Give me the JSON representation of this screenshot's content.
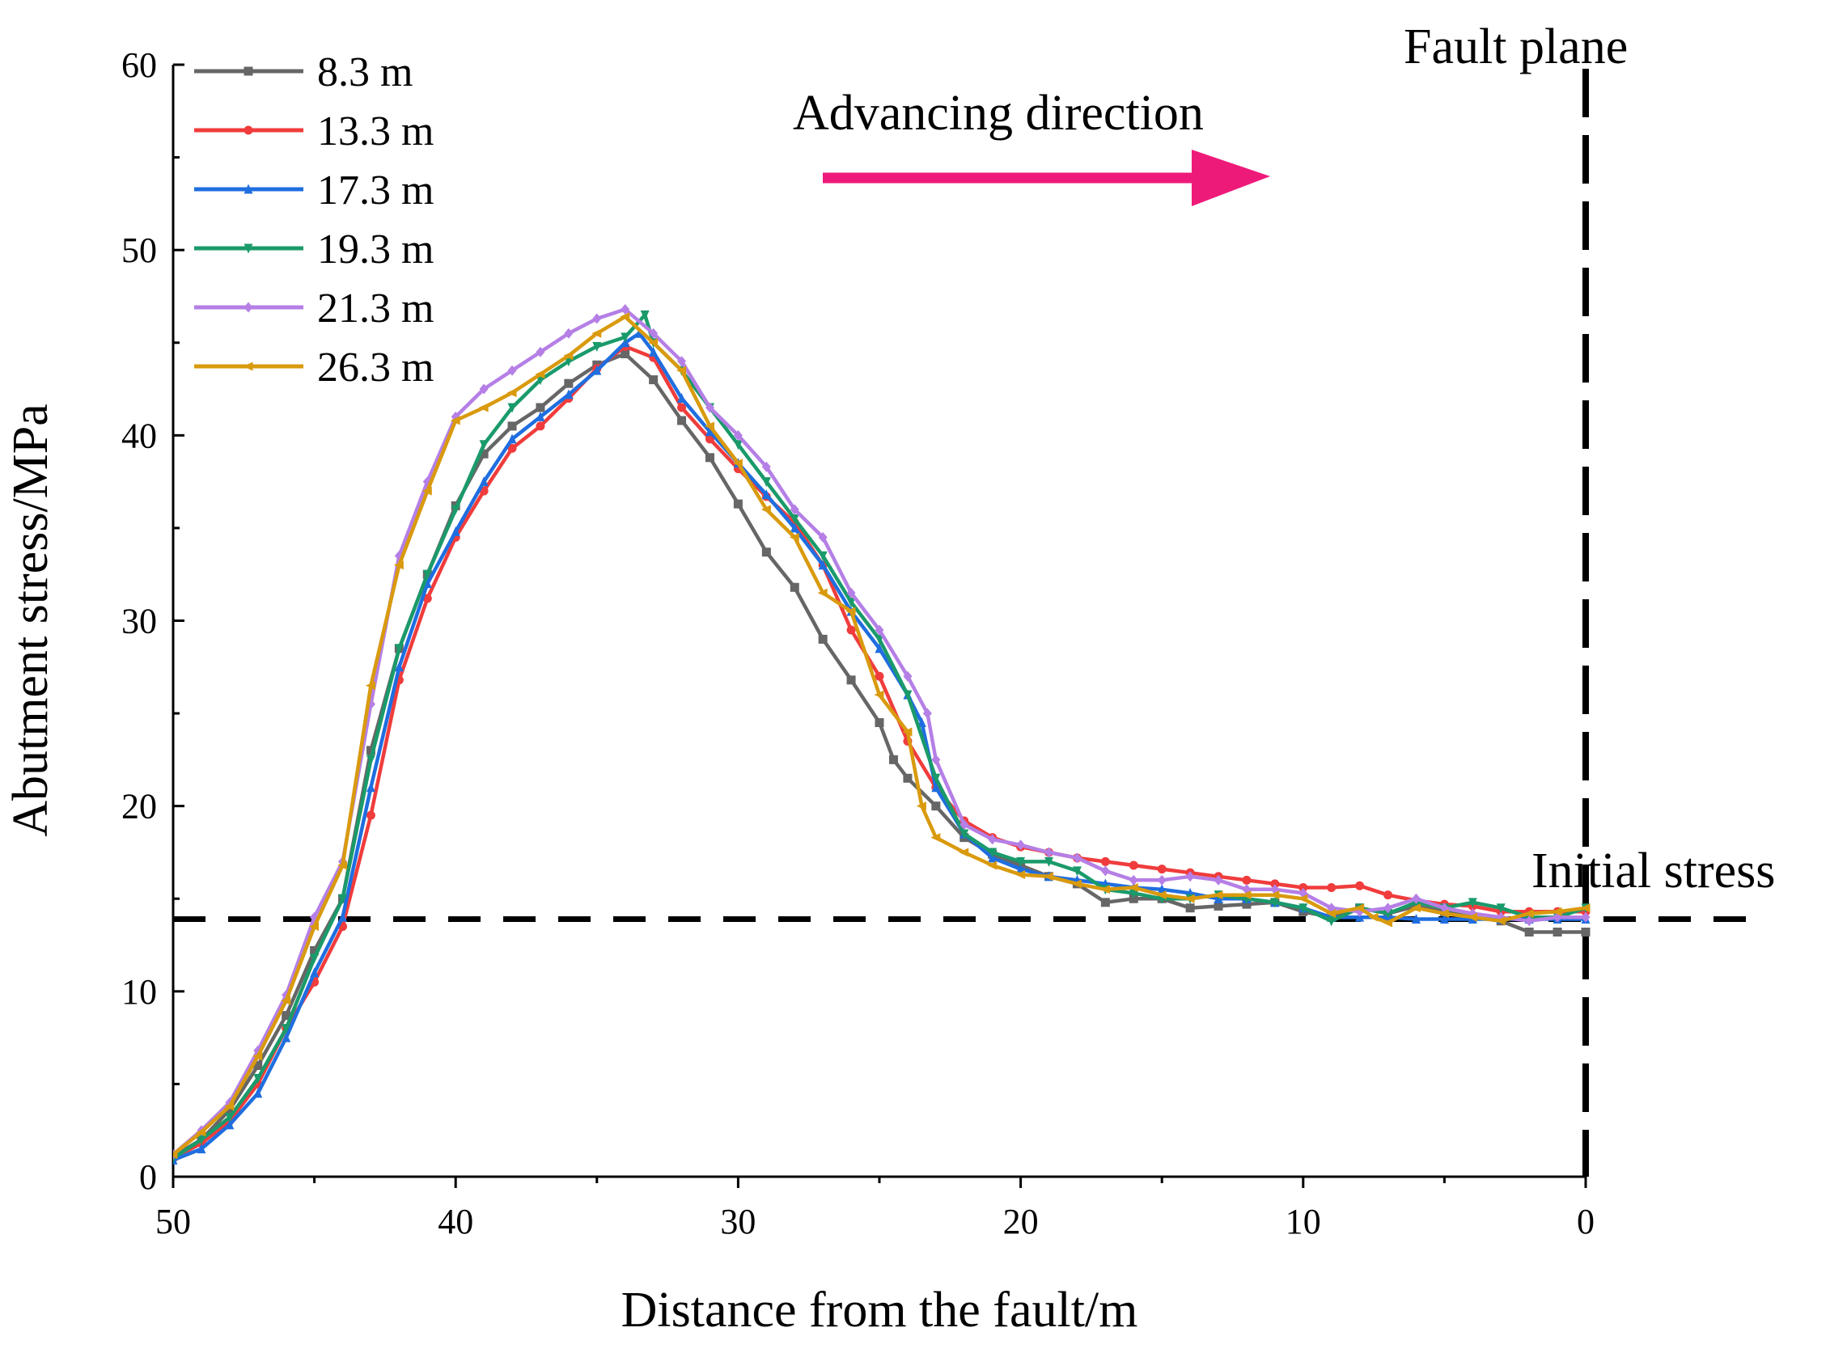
{
  "chart_data": {
    "type": "line",
    "title": "",
    "xlabel": "Distance from the fault/m",
    "ylabel": "Abutment stress/MPa",
    "xlim": [
      50,
      0
    ],
    "ylim": [
      0,
      60
    ],
    "xticks": [
      "50",
      "40",
      "30",
      "20",
      "10",
      "0"
    ],
    "yticks": [
      "0",
      "10",
      "20",
      "30",
      "40",
      "50",
      "60"
    ],
    "grid": false,
    "legend_position": "top-left",
    "annotations": {
      "fault_plane": "Fault plane",
      "initial_stress": "Initial stress",
      "advancing_direction": "Advancing direction"
    },
    "reference_lines": {
      "initial_stress_value": 13.9,
      "fault_plane_x": 0
    },
    "arrow_color": "#ee1a7a",
    "series": [
      {
        "name": "8.3 m",
        "color": "#666666",
        "marker": "square",
        "x": [
          50,
          49,
          48,
          47,
          46,
          45,
          44,
          43,
          42,
          41,
          40,
          39,
          38,
          37,
          36,
          35,
          34,
          33,
          32,
          31,
          30,
          29,
          28,
          27,
          26,
          25,
          24.5,
          24,
          23,
          22,
          21,
          20,
          19,
          18,
          17,
          16,
          15,
          14,
          13,
          12,
          11,
          10,
          9,
          8,
          7,
          6,
          5,
          4,
          3,
          2,
          1,
          0
        ],
        "y": [
          1.1,
          2.0,
          3.6,
          6.0,
          8.7,
          12.2,
          15.0,
          23.0,
          28.5,
          32.5,
          36.2,
          39.0,
          40.5,
          41.5,
          42.8,
          43.8,
          44.4,
          43.0,
          40.8,
          38.8,
          36.3,
          33.7,
          31.8,
          29.0,
          26.8,
          24.5,
          22.5,
          21.5,
          20.0,
          18.3,
          17.4,
          16.8,
          16.2,
          15.8,
          14.8,
          15.0,
          15.0,
          14.5,
          14.6,
          14.7,
          14.8,
          14.3,
          14.0,
          14.5,
          14.2,
          14.6,
          14.3,
          14.0,
          13.8,
          13.2,
          13.2,
          13.2
        ]
      },
      {
        "name": "13.3 m",
        "color": "#f03c3c",
        "marker": "circle",
        "x": [
          50,
          49,
          48,
          47,
          46,
          45,
          44,
          43,
          42,
          41,
          40,
          39,
          38,
          37,
          36,
          35,
          34,
          33,
          32,
          31,
          30,
          29,
          28,
          27,
          26,
          25,
          24,
          23,
          22,
          21,
          20,
          19,
          18,
          17,
          16,
          15,
          14,
          13,
          12,
          11,
          10,
          9,
          8,
          7,
          6,
          5,
          4,
          3,
          2,
          1,
          0
        ],
        "y": [
          1.0,
          1.8,
          3.0,
          5.0,
          8.0,
          10.5,
          13.5,
          19.5,
          26.8,
          31.2,
          34.5,
          37.0,
          39.3,
          40.5,
          42.0,
          43.6,
          44.8,
          44.2,
          41.5,
          39.8,
          38.2,
          36.7,
          35.3,
          33.0,
          29.5,
          27.0,
          23.5,
          21.0,
          19.2,
          18.3,
          17.8,
          17.5,
          17.2,
          17.0,
          16.8,
          16.6,
          16.4,
          16.2,
          16.0,
          15.8,
          15.6,
          15.6,
          15.7,
          15.2,
          14.9,
          14.7,
          14.6,
          14.3,
          14.3,
          14.3,
          14.3
        ]
      },
      {
        "name": "17.3 m",
        "color": "#1f6ee0",
        "marker": "triangle-up",
        "x": [
          50,
          49,
          48,
          47,
          46,
          45,
          44,
          43,
          42,
          41,
          40,
          39,
          38,
          37,
          36,
          35,
          34,
          33.5,
          33,
          32,
          31,
          30,
          29,
          28,
          27,
          26,
          25,
          24,
          23.5,
          23,
          22,
          21,
          20,
          19,
          18,
          17,
          16,
          15,
          14,
          13,
          12,
          11,
          10,
          9,
          8,
          7,
          6,
          5,
          4,
          3,
          2,
          1,
          0
        ],
        "y": [
          0.9,
          1.5,
          2.8,
          4.5,
          7.5,
          11.0,
          14.0,
          21.0,
          27.5,
          32.0,
          34.8,
          37.5,
          39.8,
          41.0,
          42.2,
          43.5,
          45.0,
          45.5,
          44.5,
          42.0,
          40.2,
          38.5,
          36.8,
          35.0,
          33.0,
          30.5,
          28.5,
          26.0,
          24.5,
          21.0,
          18.5,
          17.2,
          16.6,
          16.2,
          16.0,
          15.8,
          15.6,
          15.5,
          15.3,
          15.0,
          15.0,
          14.8,
          14.5,
          14.0,
          14.0,
          14.0,
          13.9,
          13.9,
          13.9,
          13.9,
          13.9,
          13.9,
          13.9
        ]
      },
      {
        "name": "19.3 m",
        "color": "#1a9a6a",
        "marker": "triangle-down",
        "x": [
          50,
          49,
          48,
          47,
          46,
          45,
          44,
          43,
          42,
          41,
          40,
          39,
          38,
          37,
          36,
          35,
          34,
          33.3,
          33,
          32,
          31,
          30,
          29,
          28,
          27,
          26,
          25,
          24,
          23,
          22,
          21,
          20,
          19,
          18,
          17,
          16,
          15,
          14,
          13,
          12,
          11,
          10,
          9,
          8,
          7,
          6,
          5,
          4,
          3,
          2,
          1,
          0
        ],
        "y": [
          1.0,
          2.0,
          3.2,
          5.3,
          8.0,
          11.8,
          15.0,
          22.5,
          28.5,
          32.5,
          36.0,
          39.5,
          41.5,
          43.0,
          44.0,
          44.8,
          45.3,
          46.5,
          45.0,
          43.5,
          41.5,
          39.5,
          37.5,
          35.5,
          33.5,
          31.0,
          29.0,
          26.0,
          21.5,
          18.5,
          17.5,
          17.0,
          17.0,
          16.5,
          15.5,
          15.3,
          15.0,
          15.0,
          15.2,
          15.0,
          14.8,
          14.5,
          13.8,
          14.5,
          14.2,
          14.8,
          14.5,
          14.8,
          14.5,
          14.0,
          14.0,
          14.5
        ]
      },
      {
        "name": "21.3 m",
        "color": "#b57fe6",
        "marker": "diamond",
        "x": [
          50,
          49,
          48,
          47,
          46,
          45,
          44,
          43,
          42,
          41,
          40,
          39,
          38,
          37,
          36,
          35,
          34,
          33,
          32,
          31,
          30,
          29,
          28,
          27,
          26,
          25,
          24,
          23.3,
          23,
          22,
          21,
          20,
          19,
          18,
          17,
          16,
          15,
          14,
          13,
          12,
          11,
          10,
          9,
          8,
          7,
          6,
          5,
          4,
          3,
          2,
          1,
          0
        ],
        "y": [
          1.2,
          2.5,
          4.0,
          6.8,
          9.8,
          14.0,
          17.0,
          25.5,
          33.5,
          37.5,
          41.0,
          42.5,
          43.5,
          44.5,
          45.5,
          46.3,
          46.8,
          45.5,
          44.0,
          41.5,
          40.0,
          38.3,
          36.0,
          34.5,
          31.5,
          29.5,
          27.0,
          25.0,
          22.5,
          19.0,
          18.2,
          17.9,
          17.5,
          17.2,
          16.5,
          16.0,
          16.0,
          16.2,
          16.0,
          15.5,
          15.5,
          15.3,
          14.5,
          14.3,
          14.5,
          15.0,
          14.5,
          14.2,
          14.0,
          13.8,
          14.0,
          14.0
        ]
      },
      {
        "name": "26.3 m",
        "color": "#d99a0e",
        "marker": "left-triangle",
        "x": [
          50,
          49,
          48,
          47,
          46,
          45,
          44,
          43,
          42,
          41,
          40,
          39,
          38,
          37,
          36,
          35,
          34,
          33,
          32,
          31,
          30,
          29,
          28,
          27,
          26,
          25,
          24,
          23.5,
          23,
          22,
          21,
          20,
          19,
          18,
          17,
          16,
          15,
          14,
          13,
          12,
          11,
          10,
          9,
          8,
          7.5,
          7,
          6,
          5,
          4,
          3,
          2,
          1,
          0
        ],
        "y": [
          1.2,
          2.4,
          3.8,
          6.5,
          9.5,
          13.5,
          16.8,
          26.5,
          33.0,
          37.0,
          40.8,
          41.5,
          42.3,
          43.3,
          44.3,
          45.5,
          46.4,
          45.0,
          43.5,
          40.5,
          38.5,
          36.0,
          34.5,
          31.5,
          30.5,
          26.0,
          24.0,
          20.0,
          18.3,
          17.5,
          16.8,
          16.3,
          16.2,
          15.8,
          15.5,
          15.6,
          15.2,
          15.0,
          15.2,
          15.2,
          15.2,
          15.0,
          14.2,
          14.5,
          14.0,
          13.7,
          14.5,
          14.2,
          14.0,
          13.8,
          14.2,
          14.3,
          14.5
        ]
      }
    ]
  }
}
